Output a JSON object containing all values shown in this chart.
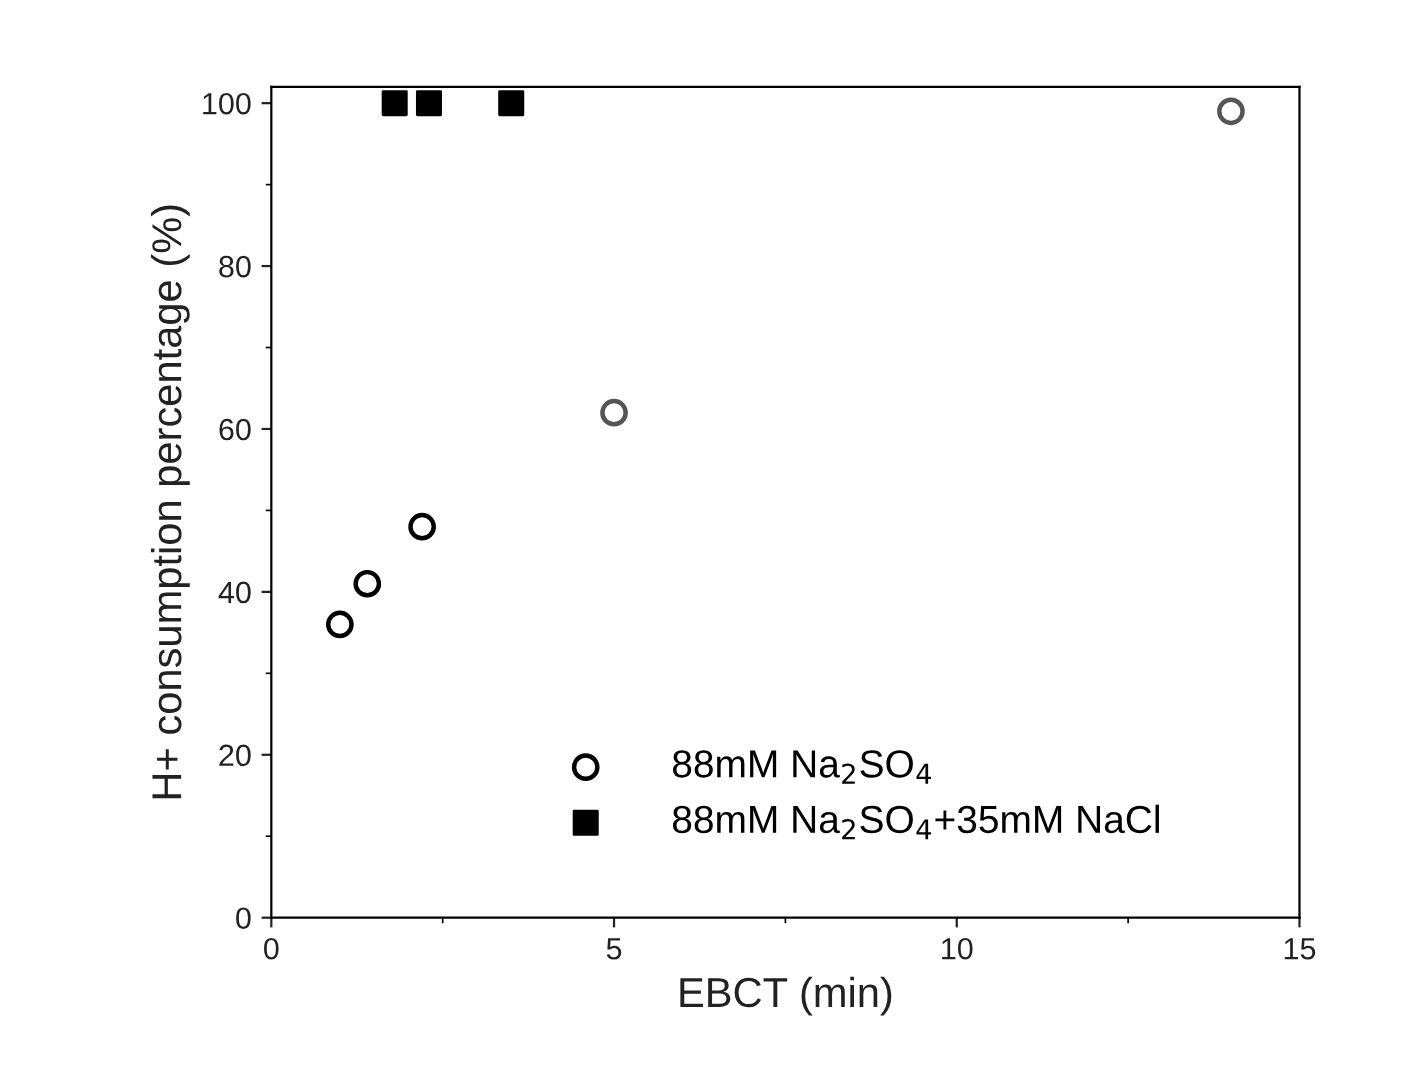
{
  "chart_data": {
    "type": "scatter",
    "xlabel": "EBCT (min)",
    "ylabel": "H+ consumption percentage (%)",
    "xlim": [
      0,
      15
    ],
    "xticks": [
      0,
      5,
      10,
      15
    ],
    "ylim": [
      0,
      102
    ],
    "yticks": [
      0,
      20,
      40,
      60,
      80,
      100
    ],
    "grid": false,
    "legend": "bottom right",
    "series": [
      {
        "name": "88mM Na$_{2}$SO$_{4}$",
        "marker": "circle",
        "color": "#000000",
        "colors": [
          "#000000",
          "#000000",
          "#000000",
          "#555555",
          "#555555"
        ],
        "x": [
          1.0,
          1.4,
          2.2,
          5,
          14
        ],
        "values": [
          36,
          41,
          48,
          62,
          99
        ]
      },
      {
        "name": "88mM Na$_{2}$SO$_{4}$+35mM NaCl",
        "marker": "square",
        "color": "#000000",
        "x": [
          1.8,
          2.3,
          3.5
        ],
        "values": [
          100,
          100,
          100
        ]
      }
    ]
  }
}
